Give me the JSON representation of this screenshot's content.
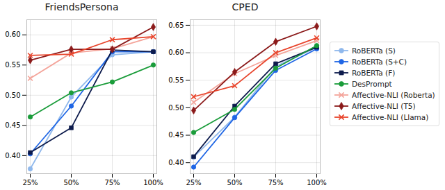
{
  "chart_data": [
    {
      "type": "line",
      "title": "FriendsPersona",
      "categories": [
        "25%",
        "50%",
        "75%",
        "100%"
      ],
      "series": [
        {
          "name": "RoBERTa (S)",
          "color": "#8fb8ec",
          "marker": "circle",
          "values": [
            0.378,
            0.497,
            0.567,
            0.572
          ]
        },
        {
          "name": "RoBERTa (S+C)",
          "color": "#1f66e5",
          "marker": "circle",
          "values": [
            0.403,
            0.482,
            0.572,
            0.572
          ]
        },
        {
          "name": "RoBERTa (F)",
          "color": "#0d1b4c",
          "marker": "square",
          "values": [
            0.405,
            0.446,
            0.575,
            0.572
          ]
        },
        {
          "name": "DesPrompt",
          "color": "#1a9c3a",
          "marker": "circle",
          "values": [
            0.464,
            0.504,
            0.522,
            0.55
          ]
        },
        {
          "name": "Affective-NLI (Roberta)",
          "color": "#f4a49a",
          "marker": "x",
          "values": [
            0.528,
            0.57,
            0.577,
            0.597
          ]
        },
        {
          "name": "Affective-NLI (T5)",
          "color": "#8b1a1a",
          "marker": "diamond",
          "values": [
            0.558,
            0.576,
            0.576,
            0.613
          ]
        },
        {
          "name": "Affective-NLI (Llama)",
          "color": "#e8452c",
          "marker": "x",
          "values": [
            0.566,
            0.568,
            0.592,
            0.597
          ]
        }
      ],
      "ylim": [
        0.37,
        0.625
      ],
      "yticks": [
        {
          "value": 0.4,
          "label": "0.40"
        },
        0.45,
        {
          "value": 0.5,
          "label": "0.50"
        },
        0.55,
        {
          "value": 0.6,
          "label": "0.60"
        }
      ],
      "grid": true,
      "legend": "right"
    },
    {
      "type": "line",
      "title": "CPED",
      "categories": [
        "25%",
        "50%",
        "75%",
        "100%"
      ],
      "series": [
        {
          "name": "RoBERTa (S)",
          "color": "#8fb8ec",
          "marker": "circle",
          "values": [
            0.41,
            0.483,
            0.575,
            0.61
          ]
        },
        {
          "name": "RoBERTa (S+C)",
          "color": "#1f66e5",
          "marker": "circle",
          "values": [
            0.392,
            0.482,
            0.568,
            0.607
          ]
        },
        {
          "name": "RoBERTa (F)",
          "color": "#0d1b4c",
          "marker": "square",
          "values": [
            0.411,
            0.503,
            0.58,
            0.61
          ]
        },
        {
          "name": "DesPrompt",
          "color": "#1a9c3a",
          "marker": "circle",
          "values": [
            0.455,
            0.497,
            0.572,
            0.613
          ]
        },
        {
          "name": "Affective-NLI (Roberta)",
          "color": "#f4a49a",
          "marker": "x",
          "values": [
            0.51,
            0.562,
            0.595,
            0.622
          ]
        },
        {
          "name": "Affective-NLI (T5)",
          "color": "#8b1a1a",
          "marker": "diamond",
          "values": [
            0.495,
            0.565,
            0.62,
            0.648
          ]
        },
        {
          "name": "Affective-NLI (Llama)",
          "color": "#e8452c",
          "marker": "x",
          "values": [
            0.52,
            0.54,
            0.6,
            0.627
          ]
        }
      ],
      "ylim": [
        0.38,
        0.66
      ],
      "yticks": [
        {
          "value": 0.4,
          "label": "0.40"
        },
        0.45,
        {
          "value": 0.5,
          "label": "0.50"
        },
        0.55,
        {
          "value": 0.6,
          "label": "0.60"
        },
        0.65
      ],
      "grid": true
    }
  ]
}
